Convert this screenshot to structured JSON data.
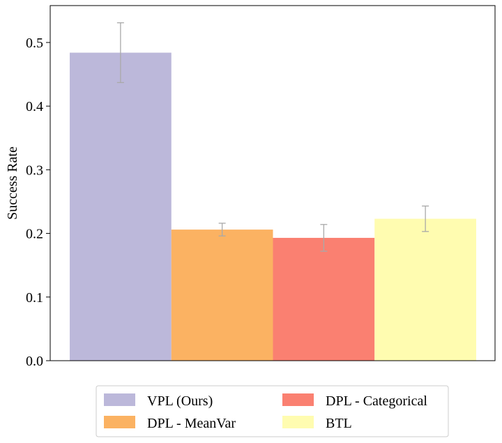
{
  "chart_data": {
    "type": "bar",
    "title": "",
    "xlabel": "",
    "ylabel": "Success Rate",
    "ylim": [
      0,
      0.558
    ],
    "yticks": [
      0.0,
      0.1,
      0.2,
      0.3,
      0.4,
      0.5
    ],
    "ytick_labels": [
      "0.0",
      "0.1",
      "0.2",
      "0.3",
      "0.4",
      "0.5"
    ],
    "grid": false,
    "legend_position": "bottom-center, outside",
    "series": [
      {
        "name": "VPL (Ours)",
        "value": 0.484,
        "error": 0.047,
        "color": "#bcb8da"
      },
      {
        "name": "DPL - MeanVar",
        "value": 0.206,
        "error": 0.01,
        "color": "#fbb262"
      },
      {
        "name": "DPL - Categorical",
        "value": 0.193,
        "error": 0.021,
        "color": "#fa8071"
      },
      {
        "name": "BTL",
        "value": 0.223,
        "error": 0.02,
        "color": "#fffcb0"
      }
    ]
  }
}
